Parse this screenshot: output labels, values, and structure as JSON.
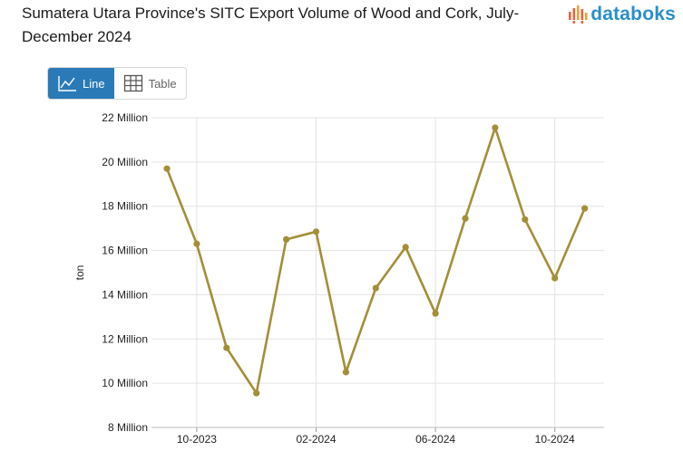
{
  "header": {
    "title": "Sumatera Utara Province's SITC Export Volume of Wood and Cork, July-December 2024",
    "brand": "databoks"
  },
  "view_toggle": {
    "line_label": "Line",
    "table_label": "Table",
    "active": "line"
  },
  "colors": {
    "series": "#a38f37",
    "grid": "#e3e3e3",
    "active_button": "#2a7ab8",
    "brand": "#2a8fc9"
  },
  "chart_data": {
    "type": "line",
    "title": "Sumatera Utara Province's SITC Export Volume of Wood and Cork, July-December 2024",
    "ylabel": "ton",
    "xlabel": "",
    "ylim": [
      8,
      22
    ],
    "y_unit": "Million",
    "y_ticks": [
      8,
      10,
      12,
      14,
      16,
      18,
      20,
      22
    ],
    "y_tick_labels": [
      "8 Million",
      "10 Million",
      "12 Million",
      "14 Million",
      "16 Million",
      "18 Million",
      "20 Million",
      "22 Million"
    ],
    "x_tick_labels": [
      "10-2023",
      "02-2024",
      "06-2024",
      "10-2024"
    ],
    "x": [
      "09-2023",
      "10-2023",
      "11-2023",
      "12-2023",
      "01-2024",
      "02-2024",
      "03-2024",
      "04-2024",
      "05-2024",
      "06-2024",
      "07-2024",
      "08-2024",
      "09-2024",
      "10-2024",
      "11-2024"
    ],
    "values": [
      19.7,
      16.3,
      11.6,
      9.55,
      16.5,
      16.85,
      10.5,
      14.3,
      16.15,
      13.15,
      17.45,
      21.55,
      17.4,
      14.75,
      17.9
    ],
    "grid": true,
    "legend": "none"
  }
}
